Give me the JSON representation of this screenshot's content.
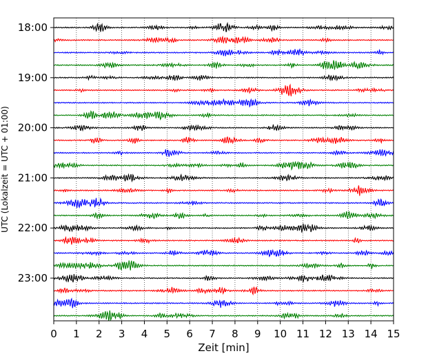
{
  "chart_data": {
    "type": "line",
    "subtype": "helicorder",
    "xlabel": "Zeit  [min]",
    "ylabel": "UTC (Lokalzeit = UTC + 01:00)",
    "xlim": [
      0,
      15
    ],
    "xticks": [
      0,
      1,
      2,
      3,
      4,
      5,
      6,
      7,
      8,
      9,
      10,
      11,
      12,
      13,
      14,
      15
    ],
    "x_gridlines": "vertical dotted at each minute",
    "row_interval_minutes": 15,
    "y_tick_labels": [
      "18:00",
      "19:00",
      "20:00",
      "21:00",
      "22:00",
      "23:00"
    ],
    "y_tick_rows": [
      0,
      4,
      8,
      12,
      16,
      20
    ],
    "trace_colors": [
      "#000000",
      "#ff0000",
      "#0000ff",
      "#008000"
    ],
    "rows": [
      {
        "start": "18:00",
        "color": "#000000"
      },
      {
        "start": "18:15",
        "color": "#ff0000"
      },
      {
        "start": "18:30",
        "color": "#0000ff"
      },
      {
        "start": "18:45",
        "color": "#008000"
      },
      {
        "start": "19:00",
        "color": "#000000"
      },
      {
        "start": "19:15",
        "color": "#ff0000"
      },
      {
        "start": "19:30",
        "color": "#0000ff"
      },
      {
        "start": "19:45",
        "color": "#008000"
      },
      {
        "start": "20:00",
        "color": "#000000"
      },
      {
        "start": "20:15",
        "color": "#ff0000"
      },
      {
        "start": "20:30",
        "color": "#0000ff"
      },
      {
        "start": "20:45",
        "color": "#008000"
      },
      {
        "start": "21:00",
        "color": "#000000"
      },
      {
        "start": "21:15",
        "color": "#ff0000"
      },
      {
        "start": "21:30",
        "color": "#0000ff"
      },
      {
        "start": "21:45",
        "color": "#008000"
      },
      {
        "start": "22:00",
        "color": "#000000"
      },
      {
        "start": "22:15",
        "color": "#ff0000"
      },
      {
        "start": "22:30",
        "color": "#0000ff"
      },
      {
        "start": "22:45",
        "color": "#008000"
      },
      {
        "start": "23:00",
        "color": "#000000"
      },
      {
        "start": "23:15",
        "color": "#ff0000"
      },
      {
        "start": "23:30",
        "color": "#0000ff"
      },
      {
        "start": "23:45",
        "color": "#008000"
      }
    ]
  }
}
